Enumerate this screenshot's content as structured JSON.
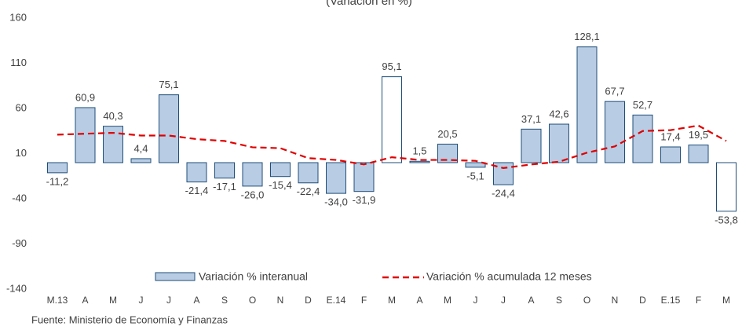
{
  "chart_data": {
    "type": "bar_line",
    "title": "(Variación en %)",
    "categories": [
      "M.13",
      "A",
      "M",
      "J",
      "J",
      "A",
      "S",
      "O",
      "N",
      "D",
      "E.14",
      "F",
      "M",
      "A",
      "M",
      "J",
      "J",
      "A",
      "S",
      "O",
      "N",
      "D",
      "E.15",
      "F",
      "M"
    ],
    "series": [
      {
        "name": "Variación % interanual",
        "kind": "bar",
        "color": "#b8cce4",
        "edge": "#1f4e79",
        "bar_colors": [
          "#b8cce4",
          "#b8cce4",
          "#b8cce4",
          "#b8cce4",
          "#b8cce4",
          "#b8cce4",
          "#b8cce4",
          "#b8cce4",
          "#b8cce4",
          "#b8cce4",
          "#b8cce4",
          "#b8cce4",
          "#ffffff",
          "#b8cce4",
          "#b8cce4",
          "#b8cce4",
          "#b8cce4",
          "#b8cce4",
          "#b8cce4",
          "#b8cce4",
          "#b8cce4",
          "#b8cce4",
          "#b8cce4",
          "#b8cce4",
          "#ffffff"
        ],
        "values": [
          -11.2,
          60.9,
          40.3,
          4.4,
          75.1,
          -21.4,
          -17.1,
          -26.0,
          -15.4,
          -22.4,
          -34.0,
          -31.9,
          95.1,
          1.5,
          20.5,
          -5.1,
          -24.4,
          37.1,
          42.6,
          128.1,
          67.7,
          52.7,
          17.4,
          19.5,
          -53.8
        ],
        "value_labels": [
          "-11,2",
          "60,9",
          "40,3",
          "4,4",
          "75,1",
          "-21,4",
          "-17,1",
          "-26,0",
          "-15,4",
          "-22,4",
          "-34,0",
          "-31,9",
          "95,1",
          "1,5",
          "20,5",
          "-5,1",
          "-24,4",
          "37,1",
          "42,6",
          "128,1",
          "67,7",
          "52,7",
          "17,4",
          "19,5",
          "-53,8"
        ]
      },
      {
        "name": "Variación % acumulada 12 meses",
        "kind": "line",
        "color": "#e00000",
        "values": [
          31,
          32,
          33,
          30,
          30,
          26,
          24,
          17,
          16,
          5,
          3,
          -2,
          6,
          3,
          3,
          2,
          -6,
          -2,
          1,
          11,
          18,
          35,
          36,
          41,
          24
        ]
      }
    ],
    "ylim": [
      -140,
      160
    ],
    "yticks": [
      160,
      110,
      60,
      10,
      -40,
      -90,
      -140
    ],
    "source": "Fuente: Ministerio de Economía y Finanzas"
  }
}
